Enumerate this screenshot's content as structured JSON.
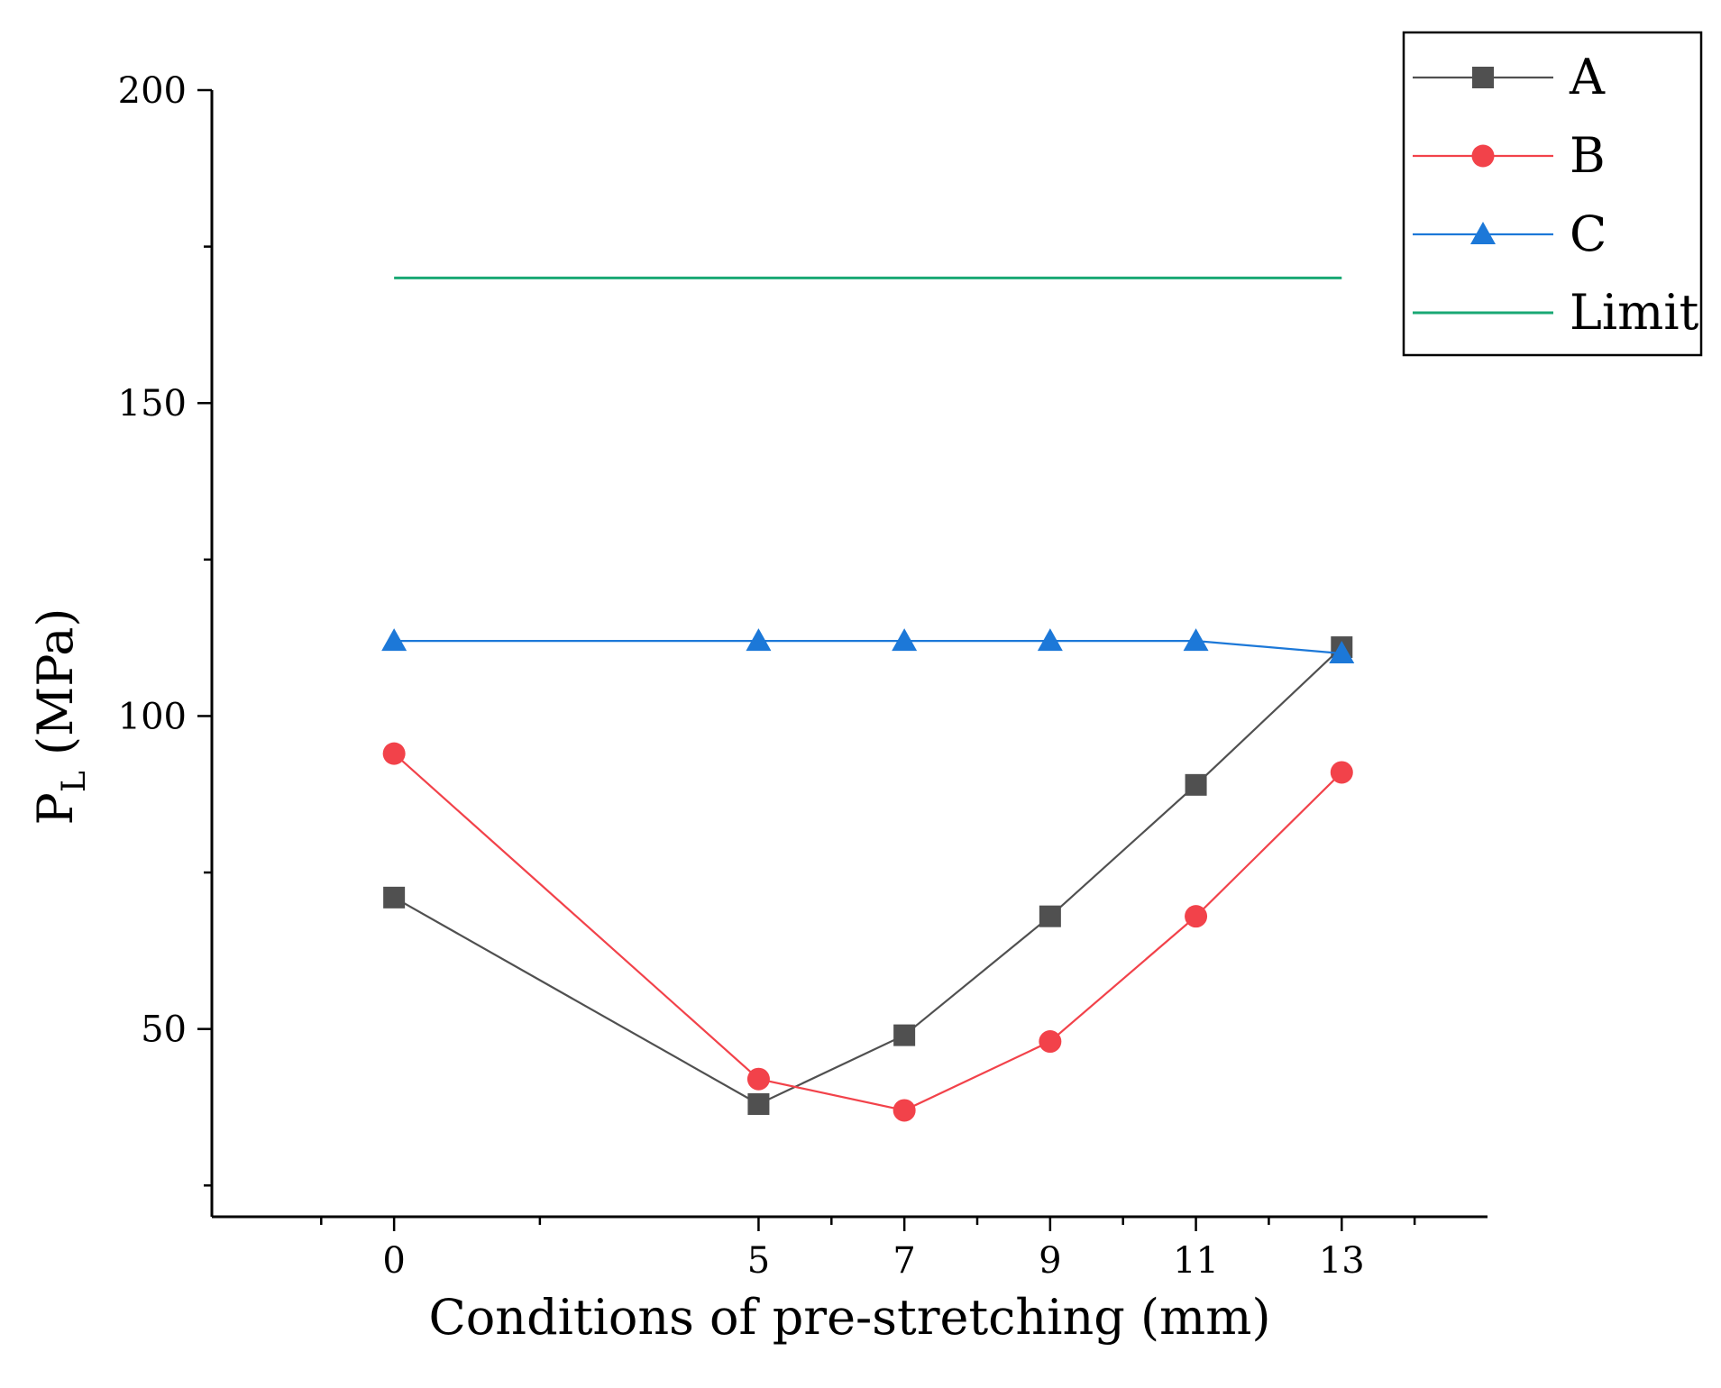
{
  "chart_data": {
    "type": "line",
    "title": "",
    "xlabel": "Conditions of pre-stretching (mm)",
    "ylabel": {
      "main": "P",
      "subscript": "L",
      "unit": " (MPa)"
    },
    "x_ticks": [
      0,
      5,
      7,
      9,
      11,
      13
    ],
    "y_ticks": [
      50,
      100,
      150,
      200
    ],
    "xlim": [
      -2.5,
      15
    ],
    "ylim": [
      20,
      200
    ],
    "legend_position": "top-right",
    "grid": false,
    "series": [
      {
        "name": "A",
        "color": "#505050",
        "marker": "square",
        "x": [
          0,
          5,
          7,
          9,
          11,
          13
        ],
        "y": [
          71,
          38,
          49,
          68,
          89,
          111
        ]
      },
      {
        "name": "B",
        "color": "#f2424a",
        "marker": "circle",
        "x": [
          0,
          5,
          7,
          9,
          11,
          13
        ],
        "y": [
          94,
          42,
          37,
          48,
          68,
          91
        ]
      },
      {
        "name": "C",
        "color": "#1c78d8",
        "marker": "triangle",
        "x": [
          0,
          5,
          7,
          9,
          11,
          13
        ],
        "y": [
          112,
          112,
          112,
          112,
          112,
          110
        ]
      },
      {
        "name": "Limit",
        "color": "#1aa874",
        "marker": "none",
        "x": [
          0,
          13
        ],
        "y": [
          170,
          170
        ]
      }
    ]
  }
}
